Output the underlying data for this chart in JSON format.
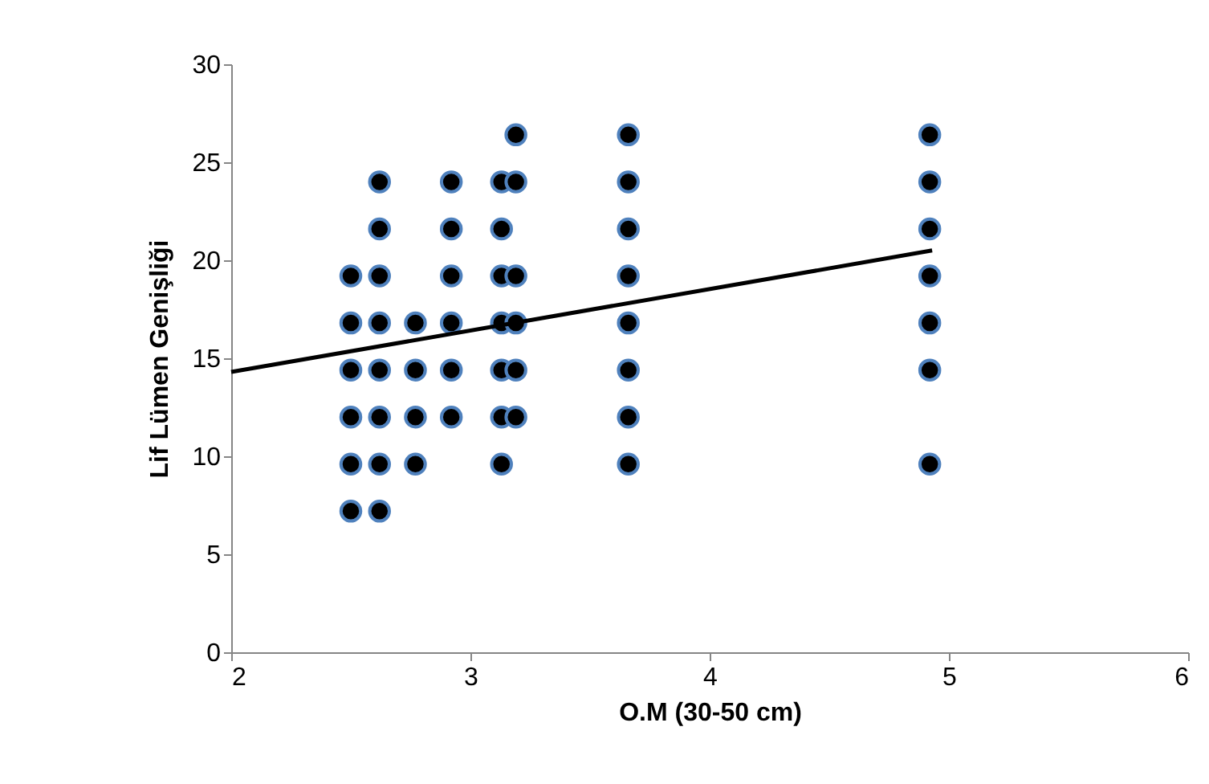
{
  "chart_data": {
    "type": "scatter",
    "xlabel": "O.M (30-50 cm)",
    "ylabel": "Lif  Lümen Genişliği",
    "xlim": [
      2,
      6
    ],
    "xticks": [
      2,
      3,
      4,
      5,
      6
    ],
    "ylim": [
      0,
      30
    ],
    "yticks": [
      0,
      5,
      10,
      15,
      20,
      25,
      30
    ],
    "grid": false,
    "series": [
      {
        "color": "#000000",
        "marker": "circle",
        "x": [
          2.5,
          2.5,
          2.5,
          2.5,
          2.5,
          2.5,
          2.62,
          2.62,
          2.62,
          2.62,
          2.62,
          2.62,
          2.62,
          2.62,
          2.77,
          2.77,
          2.77,
          2.77,
          2.92,
          2.92,
          2.92,
          2.92,
          2.92,
          2.92,
          3.13,
          3.13,
          3.13,
          3.13,
          3.13,
          3.13,
          3.13,
          3.19,
          3.19,
          3.19,
          3.19,
          3.19,
          3.19,
          3.66,
          3.66,
          3.66,
          3.66,
          3.66,
          3.66,
          3.66,
          3.66,
          4.92,
          4.92,
          4.92,
          4.92,
          4.92,
          4.92,
          4.92
        ],
        "values": [
          19.2,
          16.8,
          14.4,
          12.0,
          9.6,
          7.2,
          24.0,
          21.6,
          19.2,
          16.8,
          14.4,
          12.0,
          9.6,
          7.2,
          16.8,
          14.4,
          12.0,
          9.6,
          24.0,
          21.6,
          19.2,
          16.8,
          14.4,
          12.0,
          24.0,
          21.6,
          19.2,
          16.8,
          14.4,
          12.0,
          9.6,
          26.4,
          24.0,
          19.2,
          16.8,
          14.4,
          12.0,
          26.4,
          24.0,
          21.6,
          19.2,
          16.8,
          14.4,
          12.0,
          9.6,
          26.4,
          24.0,
          21.6,
          19.2,
          16.8,
          14.4,
          9.6
        ]
      },
      {
        "type": "line",
        "color": "#000000",
        "x": [
          2,
          4.93
        ],
        "values": [
          14.3,
          20.5
        ]
      }
    ]
  }
}
